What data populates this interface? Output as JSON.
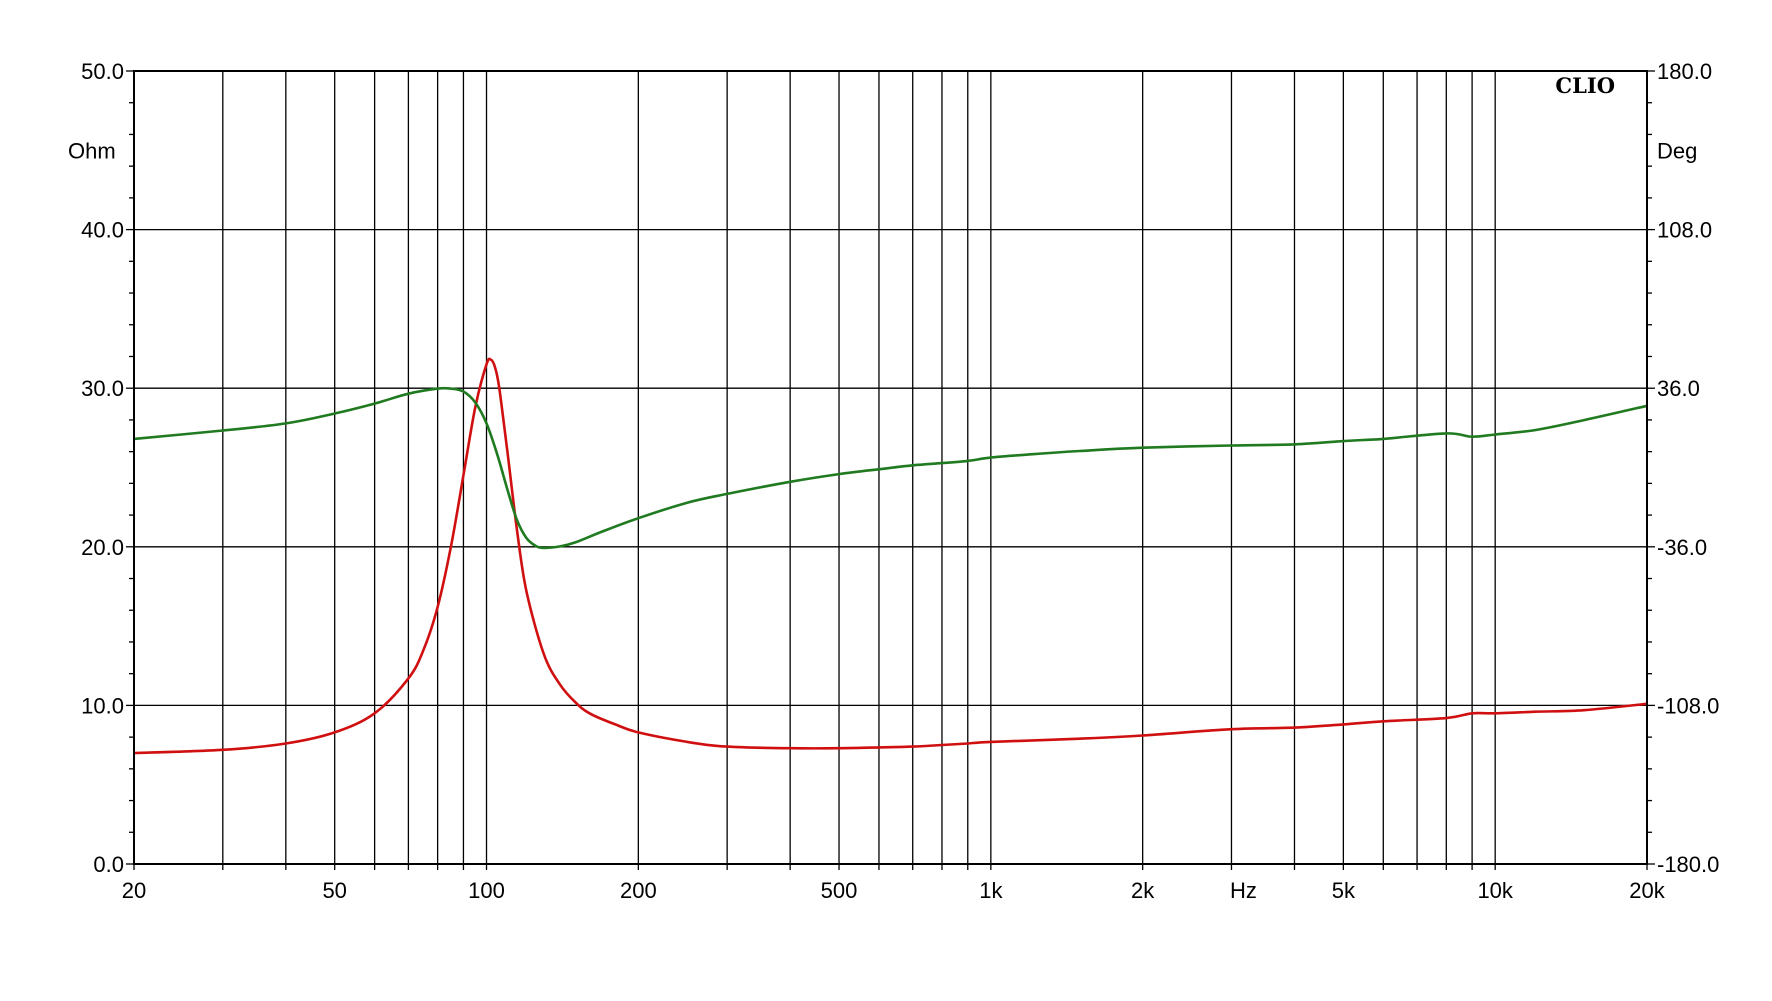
{
  "chart_data": {
    "type": "line",
    "title": "",
    "brand_label": "CLIO",
    "x_scale": "log",
    "xlim": [
      20,
      20000
    ],
    "x_tick_labels": [
      {
        "value": 20,
        "label": "20"
      },
      {
        "value": 50,
        "label": "50"
      },
      {
        "value": 100,
        "label": "100"
      },
      {
        "value": 200,
        "label": "200"
      },
      {
        "value": 500,
        "label": "500"
      },
      {
        "value": 1000,
        "label": "1k"
      },
      {
        "value": 2000,
        "label": "2k"
      },
      {
        "value": 5000,
        "label": "5k"
      },
      {
        "value": 10000,
        "label": "10k"
      },
      {
        "value": 20000,
        "label": "20k"
      }
    ],
    "x_unit_label": "Hz",
    "x_unit_label_position_hz": 3000,
    "x_minor_gridlines": [
      30,
      40,
      50,
      60,
      70,
      80,
      90,
      100,
      200,
      300,
      400,
      500,
      600,
      700,
      800,
      900,
      1000,
      2000,
      3000,
      4000,
      5000,
      6000,
      7000,
      8000,
      9000,
      10000
    ],
    "y_left": {
      "unit_label": "Ohm",
      "ylim": [
        0,
        50
      ],
      "ticks": [
        {
          "value": 0,
          "label": "0.0"
        },
        {
          "value": 10,
          "label": "10.0"
        },
        {
          "value": 20,
          "label": "20.0"
        },
        {
          "value": 30,
          "label": "30.0"
        },
        {
          "value": 40,
          "label": "40.0"
        },
        {
          "value": 50,
          "label": "50.0"
        }
      ]
    },
    "y_right": {
      "unit_label": "Deg",
      "ylim": [
        -180,
        180
      ],
      "ticks": [
        {
          "value": -180,
          "label": "-180.0"
        },
        {
          "value": -108,
          "label": "-108.0"
        },
        {
          "value": -36,
          "label": "-36.0"
        },
        {
          "value": 36,
          "label": "36.0"
        },
        {
          "value": 108,
          "label": "108.0"
        },
        {
          "value": 180,
          "label": "180.0"
        }
      ]
    },
    "grid": true,
    "legend": "none",
    "series": [
      {
        "axis": "left",
        "color": "#d01010",
        "x": [
          20,
          30,
          40,
          50,
          60,
          70,
          75,
          80,
          85,
          90,
          95,
          100,
          102,
          104,
          106,
          110,
          115,
          120,
          130,
          140,
          150,
          160,
          180,
          200,
          250,
          300,
          400,
          500,
          600,
          700,
          800,
          900,
          1000,
          1500,
          2000,
          3000,
          4000,
          5000,
          6000,
          8000,
          9000,
          10000,
          12000,
          15000,
          20000
        ],
        "y": [
          7.0,
          7.2,
          7.6,
          8.3,
          9.5,
          11.7,
          13.5,
          16.2,
          20.0,
          24.5,
          28.8,
          31.5,
          31.8,
          31.3,
          30.0,
          26.0,
          21.0,
          17.2,
          13.2,
          11.3,
          10.2,
          9.5,
          8.8,
          8.3,
          7.7,
          7.4,
          7.3,
          7.3,
          7.35,
          7.4,
          7.5,
          7.6,
          7.7,
          7.9,
          8.1,
          8.5,
          8.6,
          8.8,
          9.0,
          9.2,
          9.5,
          9.5,
          9.6,
          9.7,
          10.1
        ]
      },
      {
        "axis": "right",
        "color": "#207a20",
        "x": [
          20,
          30,
          40,
          50,
          60,
          70,
          80,
          85,
          90,
          95,
          100,
          105,
          110,
          115,
          120,
          125,
          130,
          140,
          150,
          170,
          200,
          250,
          300,
          400,
          500,
          600,
          700,
          800,
          900,
          1000,
          1200,
          1500,
          2000,
          3000,
          4000,
          5000,
          6000,
          8000,
          9000,
          10000,
          12000,
          15000,
          20000
        ],
        "y": [
          13.0,
          16.8,
          20.0,
          24.5,
          29.0,
          33.5,
          35.8,
          35.8,
          34.5,
          29.5,
          20.0,
          6.0,
          -10.0,
          -24.0,
          -32.0,
          -35.5,
          -36.5,
          -35.8,
          -34.0,
          -29.0,
          -23.0,
          -16.0,
          -12.0,
          -6.5,
          -3.0,
          -0.8,
          1.0,
          2.0,
          3.0,
          4.5,
          6.0,
          7.5,
          9.0,
          10.0,
          10.5,
          12.0,
          13.0,
          15.5,
          14.0,
          15.0,
          17.0,
          21.5,
          28.0
        ]
      }
    ]
  }
}
